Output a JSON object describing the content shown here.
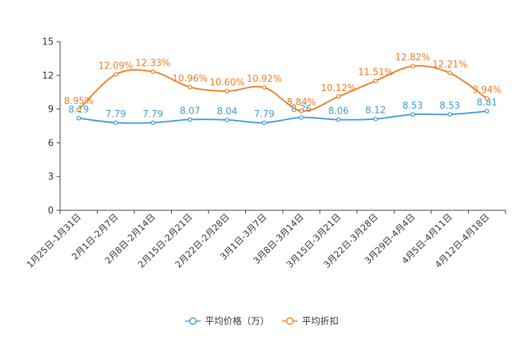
{
  "chart_data": {
    "type": "line",
    "title": "",
    "xlabel": "",
    "ylabel": "",
    "ylim": [
      0,
      15
    ],
    "yticks": [
      "0",
      "3",
      "6",
      "9",
      "12",
      "15"
    ],
    "grid": false,
    "legend_position": "bottom-center",
    "categories": [
      "1月25日-1月31日",
      "2月1日-2月7日",
      "2月8日-2月14日",
      "2月15日-2月21日",
      "2月22日-2月28日",
      "3月1日-3月7日",
      "3月8日-3月14日",
      "3月15日-3月21日",
      "3月22日-3月28日",
      "3月29日-4月4日",
      "4月5日-4月11日",
      "4月12日-4月18日"
    ],
    "series": [
      {
        "name": "平均价格（万）",
        "color": "#3c9bd2",
        "values": [
          8.19,
          7.79,
          7.79,
          8.07,
          8.04,
          7.79,
          8.26,
          8.06,
          8.12,
          8.53,
          8.53,
          8.81
        ],
        "labels": [
          "8.19",
          "7.79",
          "7.79",
          "8.07",
          "8.04",
          "7.79",
          "8.26",
          "8.06",
          "8.12",
          "8.53",
          "8.53",
          "8.81"
        ]
      },
      {
        "name": "平均折扣",
        "color": "#f07b1d",
        "values": [
          8.95,
          12.09,
          12.33,
          10.96,
          10.6,
          10.92,
          8.84,
          10.12,
          11.51,
          12.82,
          12.21,
          9.94
        ],
        "labels": [
          "8.95%",
          "12.09%",
          "12.33%",
          "10.96%",
          "10.60%",
          "10.92%",
          "8.84%",
          "10.12%",
          "11.51%",
          "12.82%",
          "12.21%",
          "9.94%"
        ]
      }
    ]
  }
}
